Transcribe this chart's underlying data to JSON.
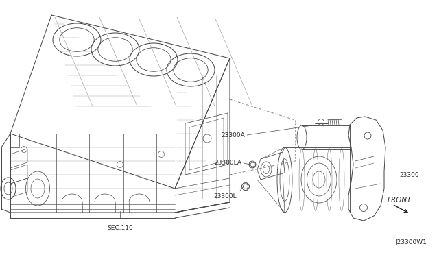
{
  "background_color": "#ffffff",
  "line_color": "#4a4a4a",
  "text_color": "#2a2a2a",
  "dash_color": "#777777",
  "labels": {
    "sec110": "SEC.110",
    "part23300A": "23300A",
    "part23300LA": "23300LA",
    "part23300L": "23300L",
    "part23300": "23300",
    "front": "FRONT",
    "diagram_id": "J23300W1"
  },
  "figsize": [
    6.4,
    3.72
  ],
  "dpi": 100
}
